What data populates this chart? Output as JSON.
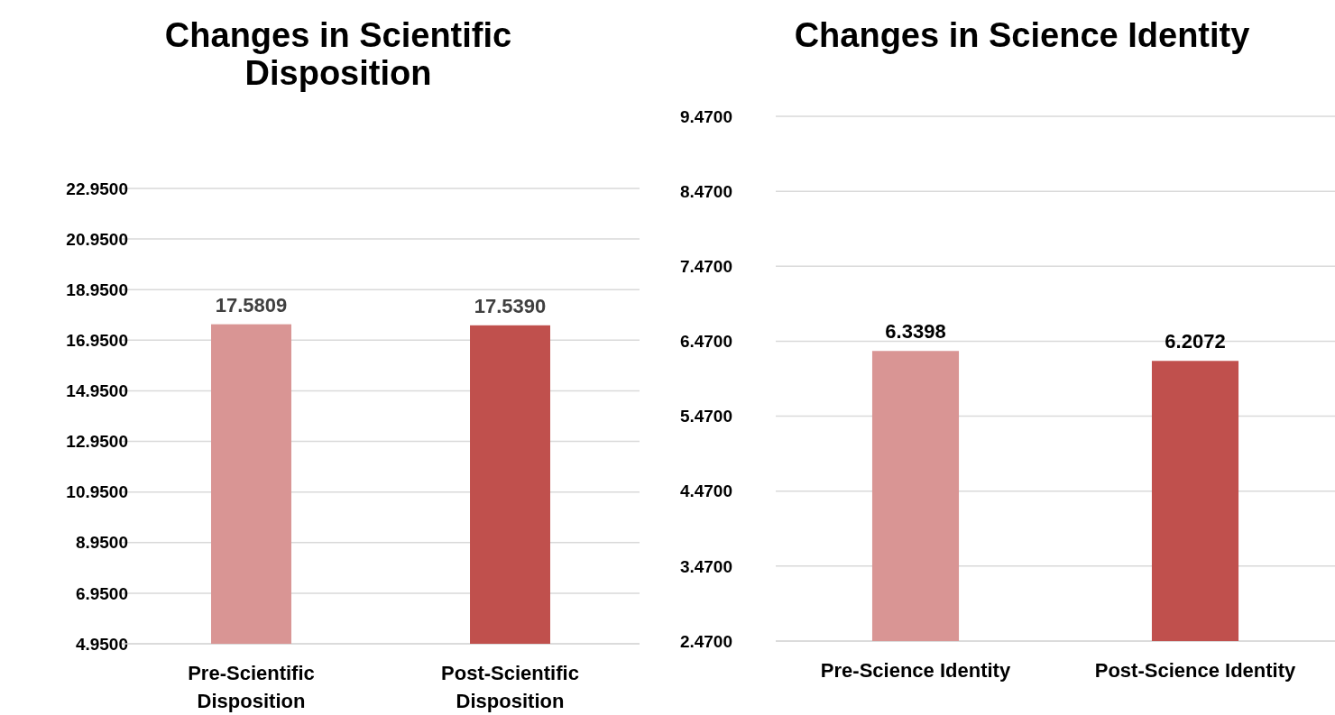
{
  "chart_data": [
    {
      "type": "bar",
      "title": "Changes in Scientific Disposition",
      "categories": [
        "Pre-Scientific Disposition",
        "Post-Scientific Disposition"
      ],
      "values": [
        17.5809,
        17.539
      ],
      "colors": [
        "#d99594",
        "#c0504d"
      ],
      "ylim": [
        4.95,
        22.95
      ],
      "yticks": [
        {
          "value": 4.95,
          "label": "4.9500"
        },
        {
          "value": 6.95,
          "label": "6.9500"
        },
        {
          "value": 8.95,
          "label": "8.9500"
        },
        {
          "value": 10.95,
          "label": "10.9500"
        },
        {
          "value": 12.95,
          "label": "12.9500"
        },
        {
          "value": 14.95,
          "label": "14.9500"
        },
        {
          "value": 16.95,
          "label": "16.9500"
        },
        {
          "value": 18.95,
          "label": "18.9500"
        },
        {
          "value": 20.95,
          "label": "20.9500"
        },
        {
          "value": 22.95,
          "label": "22.9500"
        }
      ],
      "value_labels": [
        "17.5809",
        "17.5390"
      ],
      "grid": "y"
    },
    {
      "type": "bar",
      "title": "Changes in Science Identity",
      "categories": [
        "Pre-Science Identity",
        "Post-Science Identity"
      ],
      "values": [
        6.3398,
        6.2072
      ],
      "colors": [
        "#d99594",
        "#c0504d"
      ],
      "ylim": [
        2.47,
        9.47
      ],
      "yticks": [
        {
          "value": 2.47,
          "label": "2.4700"
        },
        {
          "value": 3.47,
          "label": "3.4700"
        },
        {
          "value": 4.47,
          "label": "4.4700"
        },
        {
          "value": 5.47,
          "label": "5.4700"
        },
        {
          "value": 6.47,
          "label": "6.4700"
        },
        {
          "value": 7.47,
          "label": "7.4700"
        },
        {
          "value": 8.47,
          "label": "8.4700"
        },
        {
          "value": 9.47,
          "label": "9.4700"
        }
      ],
      "value_labels": [
        "6.3398",
        "6.2072"
      ],
      "grid": "y"
    }
  ]
}
